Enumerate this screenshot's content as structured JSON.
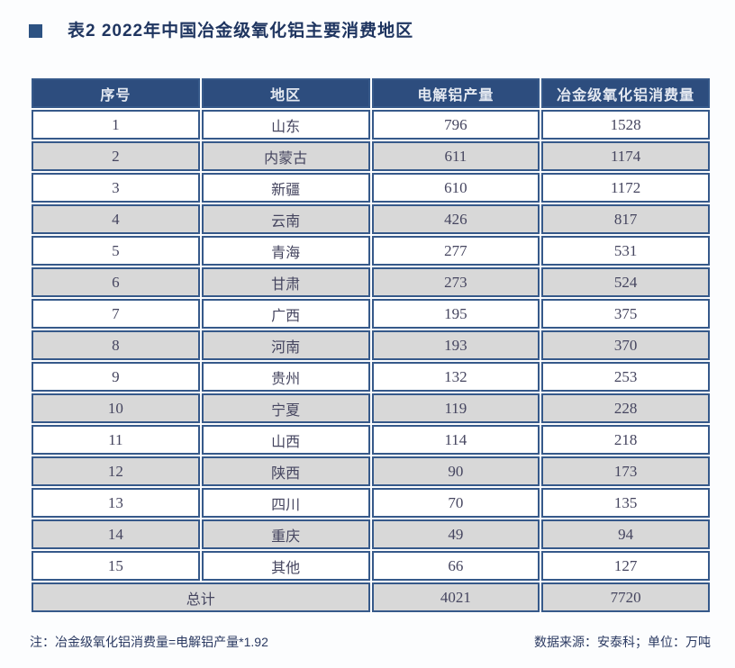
{
  "colors": {
    "page_bg": "#fcfdfe",
    "header_bg": "#2d4d7e",
    "header_text": "#e4e9f1",
    "border": "#36598a",
    "alt_row_bg": "#d8d8d8",
    "row_bg": "#ffffff",
    "cell_text": "#45455f",
    "title_text": "#1f3560",
    "bullet": "#2d5282",
    "note_text": "#2b3a62"
  },
  "chart_data": {
    "type": "table",
    "title": "表2 2022年中国冶金级氧化铝主要消费地区",
    "columns": [
      "序号",
      "地区",
      "电解铝产量",
      "冶金级氧化铝消费量"
    ],
    "rows": [
      [
        "1",
        "山东",
        "796",
        "1528"
      ],
      [
        "2",
        "内蒙古",
        "611",
        "1174"
      ],
      [
        "3",
        "新疆",
        "610",
        "1172"
      ],
      [
        "4",
        "云南",
        "426",
        "817"
      ],
      [
        "5",
        "青海",
        "277",
        "531"
      ],
      [
        "6",
        "甘肃",
        "273",
        "524"
      ],
      [
        "7",
        "广西",
        "195",
        "375"
      ],
      [
        "8",
        "河南",
        "193",
        "370"
      ],
      [
        "9",
        "贵州",
        "132",
        "253"
      ],
      [
        "10",
        "宁夏",
        "119",
        "228"
      ],
      [
        "11",
        "山西",
        "114",
        "218"
      ],
      [
        "12",
        "陕西",
        "90",
        "173"
      ],
      [
        "13",
        "四川",
        "70",
        "135"
      ],
      [
        "14",
        "重庆",
        "49",
        "94"
      ],
      [
        "15",
        "其他",
        "66",
        "127"
      ]
    ],
    "total_row": [
      "总计",
      "4021",
      "7720"
    ],
    "note": "注：冶金级氧化铝消费量=电解铝产量*1.92",
    "source": "数据来源：安泰科；单位：万吨"
  }
}
